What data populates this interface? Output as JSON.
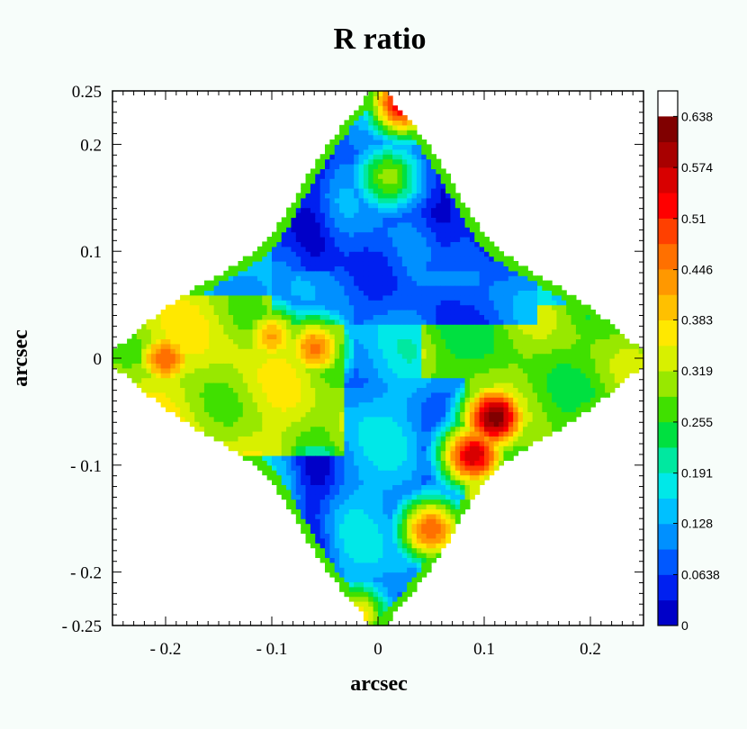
{
  "chart_data": {
    "type": "heatmap",
    "title": "R ratio",
    "xlabel": "arcsec",
    "ylabel": "arcsec",
    "xlim": [
      -0.25,
      0.25
    ],
    "ylim": [
      -0.25,
      0.25
    ],
    "x_ticks": [
      {
        "value": -0.2,
        "label": "- 0.2"
      },
      {
        "value": -0.1,
        "label": "- 0.1"
      },
      {
        "value": 0,
        "label": "0"
      },
      {
        "value": 0.1,
        "label": "0.1"
      },
      {
        "value": 0.2,
        "label": "0.2"
      }
    ],
    "y_ticks": [
      {
        "value": 0.25,
        "label": "0.25"
      },
      {
        "value": 0.2,
        "label": "0.2"
      },
      {
        "value": 0.1,
        "label": "0.1"
      },
      {
        "value": 0,
        "label": "0"
      },
      {
        "value": -0.1,
        "label": "- 0.1"
      },
      {
        "value": -0.2,
        "label": "- 0.2"
      },
      {
        "value": -0.25,
        "label": "- 0.25"
      }
    ],
    "colorbar": {
      "range": [
        0,
        0.67
      ],
      "tick_values": [
        0.638,
        0.574,
        0.51,
        0.446,
        0.383,
        0.319,
        0.255,
        0.191,
        0.128,
        0.0638,
        0
      ],
      "tick_labels": [
        "0.638",
        "0.574",
        "0.51",
        "0.446",
        "0.383",
        "0.319",
        "0.255",
        "0.191",
        "0.128",
        "0.0638",
        "0"
      ],
      "colors": [
        "#0000c8",
        "#0020f0",
        "#0058ff",
        "#0090ff",
        "#00c0ff",
        "#00e8e8",
        "#00e8a0",
        "#00e040",
        "#40e000",
        "#98e800",
        "#d8f000",
        "#ffe800",
        "#ffc000",
        "#ff9800",
        "#ff7000",
        "#ff4000",
        "#ff0000",
        "#d80000",
        "#a80000",
        "#800000"
      ]
    },
    "quadrant_regions": [
      {
        "name": "top",
        "x": [
          -0.1,
          0.15
        ],
        "y": [
          0.03,
          0.25
        ],
        "base_value": 0.1
      },
      {
        "name": "left",
        "x": [
          -0.25,
          -0.03
        ],
        "y": [
          -0.09,
          0.06
        ],
        "base_value": 0.34
      },
      {
        "name": "bottom",
        "x": [
          -0.12,
          0.08
        ],
        "y": [
          -0.25,
          -0.02
        ],
        "base_value": 0.14
      },
      {
        "name": "right",
        "x": [
          0.04,
          0.25
        ],
        "y": [
          -0.13,
          0.05
        ],
        "base_value": 0.3
      }
    ],
    "hotspots": [
      {
        "x": 0.024,
        "y": 0.24,
        "value": 0.6
      },
      {
        "x": 0.01,
        "y": 0.17,
        "value": 0.32
      },
      {
        "x": -0.1,
        "y": 0.02,
        "value": 0.44
      },
      {
        "x": -0.06,
        "y": 0.01,
        "value": 0.48
      },
      {
        "x": -0.2,
        "y": 0.0,
        "value": 0.5
      },
      {
        "x": 0.11,
        "y": -0.055,
        "value": 0.66
      },
      {
        "x": 0.09,
        "y": -0.09,
        "value": 0.6
      },
      {
        "x": 0.05,
        "y": -0.16,
        "value": 0.5
      },
      {
        "x": -0.02,
        "y": -0.24,
        "value": 0.4
      }
    ]
  }
}
